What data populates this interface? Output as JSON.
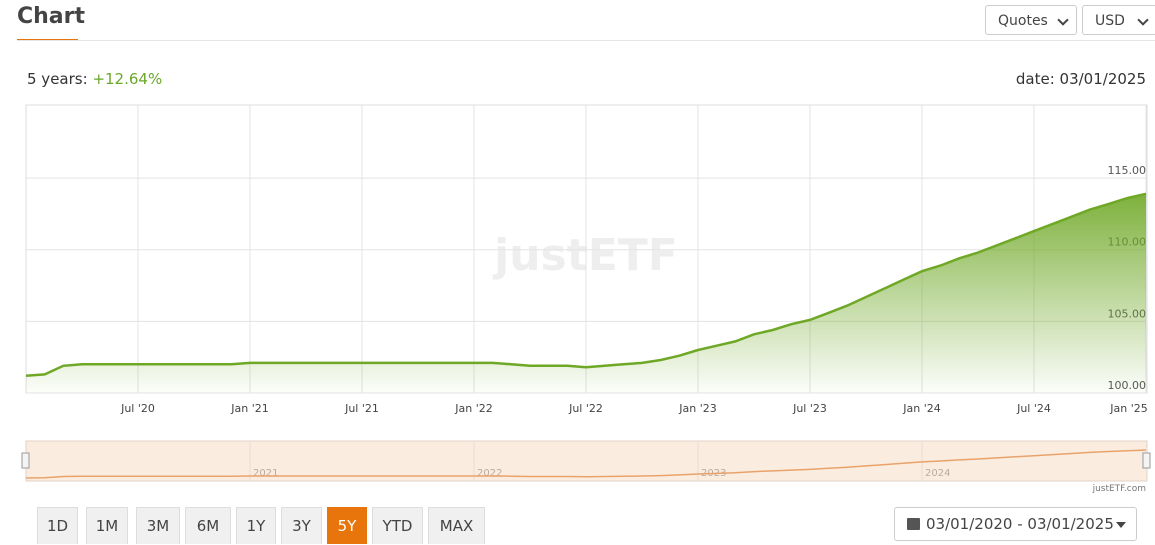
{
  "header": {
    "title": "Chart",
    "selects": [
      "Quotes",
      "USD"
    ]
  },
  "summary": {
    "period": "5 years:",
    "change": "+12.64%",
    "date": "date: 03/01/2025"
  },
  "chart_data": {
    "type": "area",
    "color": "#6fa826",
    "grid": true,
    "x": [
      "2020-01",
      "2020-02",
      "2020-03",
      "2020-04",
      "2020-05",
      "2020-06",
      "2020-07",
      "2020-08",
      "2020-09",
      "2020-10",
      "2020-11",
      "2020-12",
      "2021-01",
      "2021-02",
      "2021-03",
      "2021-04",
      "2021-05",
      "2021-06",
      "2021-07",
      "2021-08",
      "2021-09",
      "2021-10",
      "2021-11",
      "2021-12",
      "2022-01",
      "2022-02",
      "2022-03",
      "2022-04",
      "2022-05",
      "2022-06",
      "2022-07",
      "2022-08",
      "2022-09",
      "2022-10",
      "2022-11",
      "2022-12",
      "2023-01",
      "2023-02",
      "2023-03",
      "2023-04",
      "2023-05",
      "2023-06",
      "2023-07",
      "2023-08",
      "2023-09",
      "2023-10",
      "2023-11",
      "2023-12",
      "2024-01",
      "2024-02",
      "2024-03",
      "2024-04",
      "2024-05",
      "2024-06",
      "2024-07",
      "2024-08",
      "2024-09",
      "2024-10",
      "2024-11",
      "2024-12",
      "2025-01"
    ],
    "values": [
      101.2,
      101.3,
      101.9,
      102.0,
      102.0,
      102.0,
      102.0,
      102.0,
      102.0,
      102.0,
      102.0,
      102.0,
      102.1,
      102.1,
      102.1,
      102.1,
      102.1,
      102.1,
      102.1,
      102.1,
      102.1,
      102.1,
      102.1,
      102.1,
      102.1,
      102.1,
      102.0,
      101.9,
      101.9,
      101.9,
      101.8,
      101.9,
      102.0,
      102.1,
      102.3,
      102.6,
      103.0,
      103.3,
      103.6,
      104.1,
      104.4,
      104.8,
      105.1,
      105.6,
      106.1,
      106.7,
      107.3,
      107.9,
      108.5,
      108.9,
      109.4,
      109.8,
      110.3,
      110.8,
      111.3,
      111.8,
      112.3,
      112.8,
      113.2,
      113.6,
      113.9
    ],
    "xlim": [
      "2020-01",
      "2025-01"
    ],
    "ylim": [
      100,
      120.1
    ],
    "yticks": [
      {
        "value": 100,
        "label": "100.00"
      },
      {
        "value": 105,
        "label": "105.00"
      },
      {
        "value": 110,
        "label": "110.00"
      },
      {
        "value": 115,
        "label": "115.00"
      }
    ],
    "xticks": [
      {
        "value": "2020-07",
        "label": "Jul '20"
      },
      {
        "value": "2021-01",
        "label": "Jan '21"
      },
      {
        "value": "2021-07",
        "label": "Jul '21"
      },
      {
        "value": "2022-01",
        "label": "Jan '22"
      },
      {
        "value": "2022-07",
        "label": "Jul '22"
      },
      {
        "value": "2023-01",
        "label": "Jan '23"
      },
      {
        "value": "2023-07",
        "label": "Jul '23"
      },
      {
        "value": "2024-01",
        "label": "Jan '24"
      },
      {
        "value": "2024-07",
        "label": "Jul '24"
      },
      {
        "value": "2025-01",
        "label": "Jan '25"
      }
    ],
    "watermark": "justETF",
    "navigator_color": "#e8a36a",
    "navigator_xticks": [
      {
        "value": "2021-01",
        "label": "2021"
      },
      {
        "value": "2022-01",
        "label": "2022"
      },
      {
        "value": "2023-01",
        "label": "2023"
      },
      {
        "value": "2024-01",
        "label": "2024"
      }
    ],
    "credit": "justETF.com"
  },
  "controls": {
    "ranges": [
      "1D",
      "1M",
      "3M",
      "6M",
      "1Y",
      "3Y",
      "5Y",
      "YTD",
      "MAX"
    ],
    "active_range": 6,
    "date_range": "03/01/2020 - 03/01/2025"
  }
}
